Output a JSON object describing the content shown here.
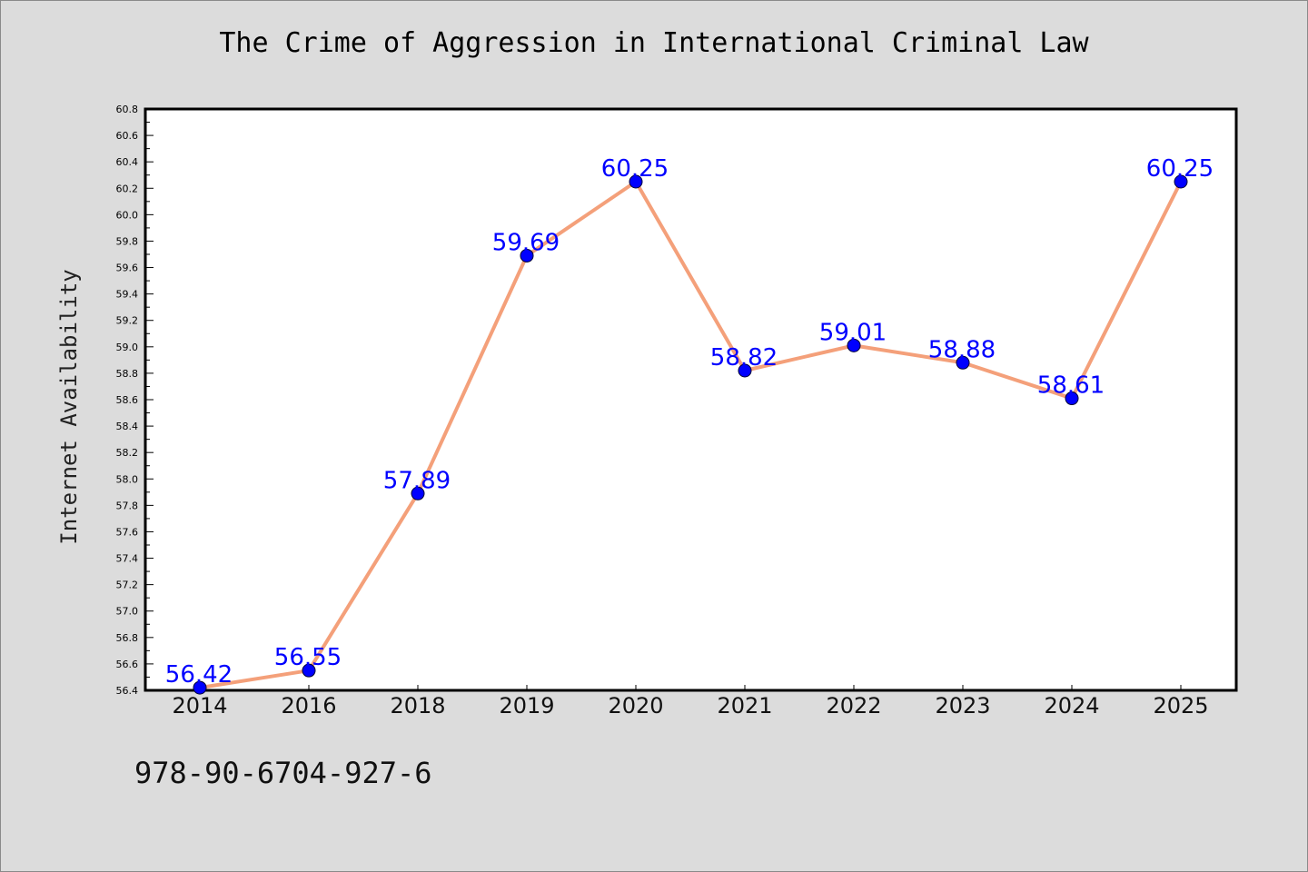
{
  "chart_data": {
    "type": "line",
    "title": "The Crime of Aggression in International Criminal Law",
    "xlabel": "",
    "ylabel": "Internet Availability",
    "categories": [
      "2014",
      "2016",
      "2018",
      "2019",
      "2020",
      "2021",
      "2022",
      "2023",
      "2024",
      "2025"
    ],
    "series": [
      {
        "values": [
          56.42,
          56.55,
          57.89,
          59.69,
          60.25,
          58.82,
          59.01,
          58.88,
          58.61,
          60.25
        ],
        "labels": [
          "56.42",
          "56.55",
          "57.89",
          "59.69",
          "60.25",
          "58.82",
          "59.01",
          "58.88",
          "58.61",
          "60.25"
        ],
        "line_color": "#f4a07a",
        "marker_color": "#0000ff",
        "label_color": "#0000ff"
      }
    ],
    "ylim": [
      56.4,
      60.8
    ],
    "yticks": [
      "56.4",
      "56.6",
      "56.8",
      "57.0",
      "57.2",
      "57.4",
      "57.6",
      "57.8",
      "58.0",
      "58.2",
      "58.4",
      "58.6",
      "58.8",
      "59.0",
      "59.2",
      "59.4",
      "59.6",
      "59.8",
      "60.0",
      "60.2",
      "60.4",
      "60.6",
      "60.8"
    ],
    "grid": false,
    "legend": "none"
  },
  "footer": {
    "text": "978-90-6704-927-6"
  },
  "colors": {
    "figure_background": "#dcdcdc",
    "plot_background": "#ffffff"
  }
}
